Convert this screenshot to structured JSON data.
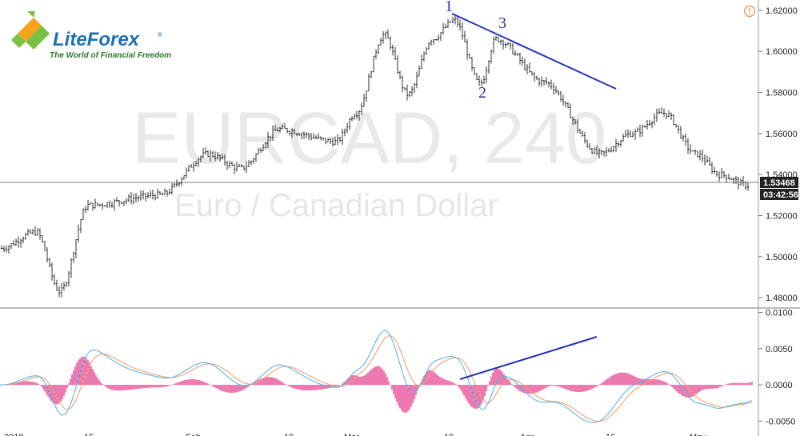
{
  "watermark": {
    "symbol": "EURCAD, 240",
    "description": "Euro / Canadian Dollar"
  },
  "logo": {
    "brand": "LiteForex",
    "registered": "®",
    "tagline": "The World of Financial Freedom"
  },
  "colors": {
    "candle": "#000000",
    "trendline": "#2233bb",
    "macd_line": "#5ab4e6",
    "signal_line": "#f0a070",
    "histogram": "#e0207a",
    "logo_green": "#7ac143",
    "logo_orange": "#f7a21b",
    "alert": "#f08c3c"
  },
  "price_axis": {
    "ticks": [
      "1.62000",
      "1.60000",
      "1.58000",
      "1.56000",
      "1.54000",
      "1.52000",
      "1.50000",
      "1.48000"
    ],
    "last_price": "1.53468",
    "countdown": "03:42:56"
  },
  "macd_axis": {
    "ticks": [
      "0.0100",
      "0.0050",
      "0.0000",
      "-0.0050"
    ]
  },
  "time_axis": {
    "labels": [
      "2018",
      "15",
      "Feb",
      "19",
      "Mar",
      "19",
      "Apr",
      "16",
      "May"
    ]
  },
  "wave_labels": [
    "1",
    "2",
    "3"
  ],
  "chart_data": [
    {
      "type": "candlestick",
      "title": "EURCAD, 240",
      "subtitle": "Euro / Canadian Dollar",
      "ylim": [
        1.475,
        1.625
      ],
      "key_points": [
        {
          "label": "2018",
          "close": 1.505
        },
        {
          "label": "15",
          "close": 1.49
        },
        {
          "label": "Feb",
          "close": 1.528
        },
        {
          "label": "19",
          "close": 1.562
        },
        {
          "label": "Mar",
          "close": 1.57
        },
        {
          "label": "19",
          "close": 1.615
        },
        {
          "label": "Apr",
          "close": 1.575
        },
        {
          "label": "16",
          "close": 1.555
        },
        {
          "label": "May",
          "close": 1.535
        }
      ],
      "last_close": 1.53468,
      "trendline": {
        "from": [
          1.615
        ],
        "to": [
          1.579
        ]
      },
      "grid": false
    },
    {
      "type": "bar",
      "ylim": [
        -0.0065,
        0.0105
      ],
      "trendline": {
        "from": [
          0.0001
        ],
        "to": [
          0.0064
        ]
      },
      "grid": false
    }
  ]
}
